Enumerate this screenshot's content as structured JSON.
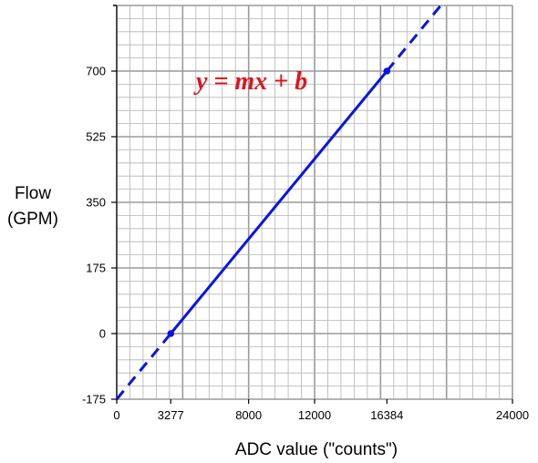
{
  "chart_data": {
    "type": "line",
    "title": "",
    "xlabel": "ADC value (\"counts\")",
    "ylabel_lines": [
      "Flow",
      "(GPM)"
    ],
    "equation": "y = mx + b",
    "xlim": [
      0,
      24000
    ],
    "ylim": [
      -175,
      875
    ],
    "x_ticks": [
      0,
      3277,
      8000,
      12000,
      16384,
      24000
    ],
    "x_tick_labels": [
      "0",
      "3277",
      "8000",
      "12000",
      "16384",
      "24000"
    ],
    "y_ticks": [
      -175,
      0,
      175,
      350,
      525,
      700
    ],
    "y_tick_labels": [
      "-175",
      "0",
      "175",
      "350",
      "525",
      "700"
    ],
    "grid": true,
    "series": [
      {
        "style": "solid",
        "color": "#0a14e6",
        "x": [
          3277,
          16384
        ],
        "y": [
          0,
          700
        ]
      },
      {
        "style": "dashed",
        "color": "#0a14e6",
        "x": [
          0,
          3277
        ],
        "y": [
          -175,
          0
        ]
      },
      {
        "style": "dashed",
        "color": "#0a14e6",
        "x": [
          16384,
          19650
        ],
        "y": [
          700,
          875
        ]
      }
    ],
    "points": [
      {
        "x": 3277,
        "y": 0
      },
      {
        "x": 16384,
        "y": 700
      }
    ],
    "colors": {
      "line": "#0a14e6",
      "equation": "#e0141e",
      "grid_minor": "#b4b4b4",
      "grid_major": "#9a9a9a"
    }
  }
}
